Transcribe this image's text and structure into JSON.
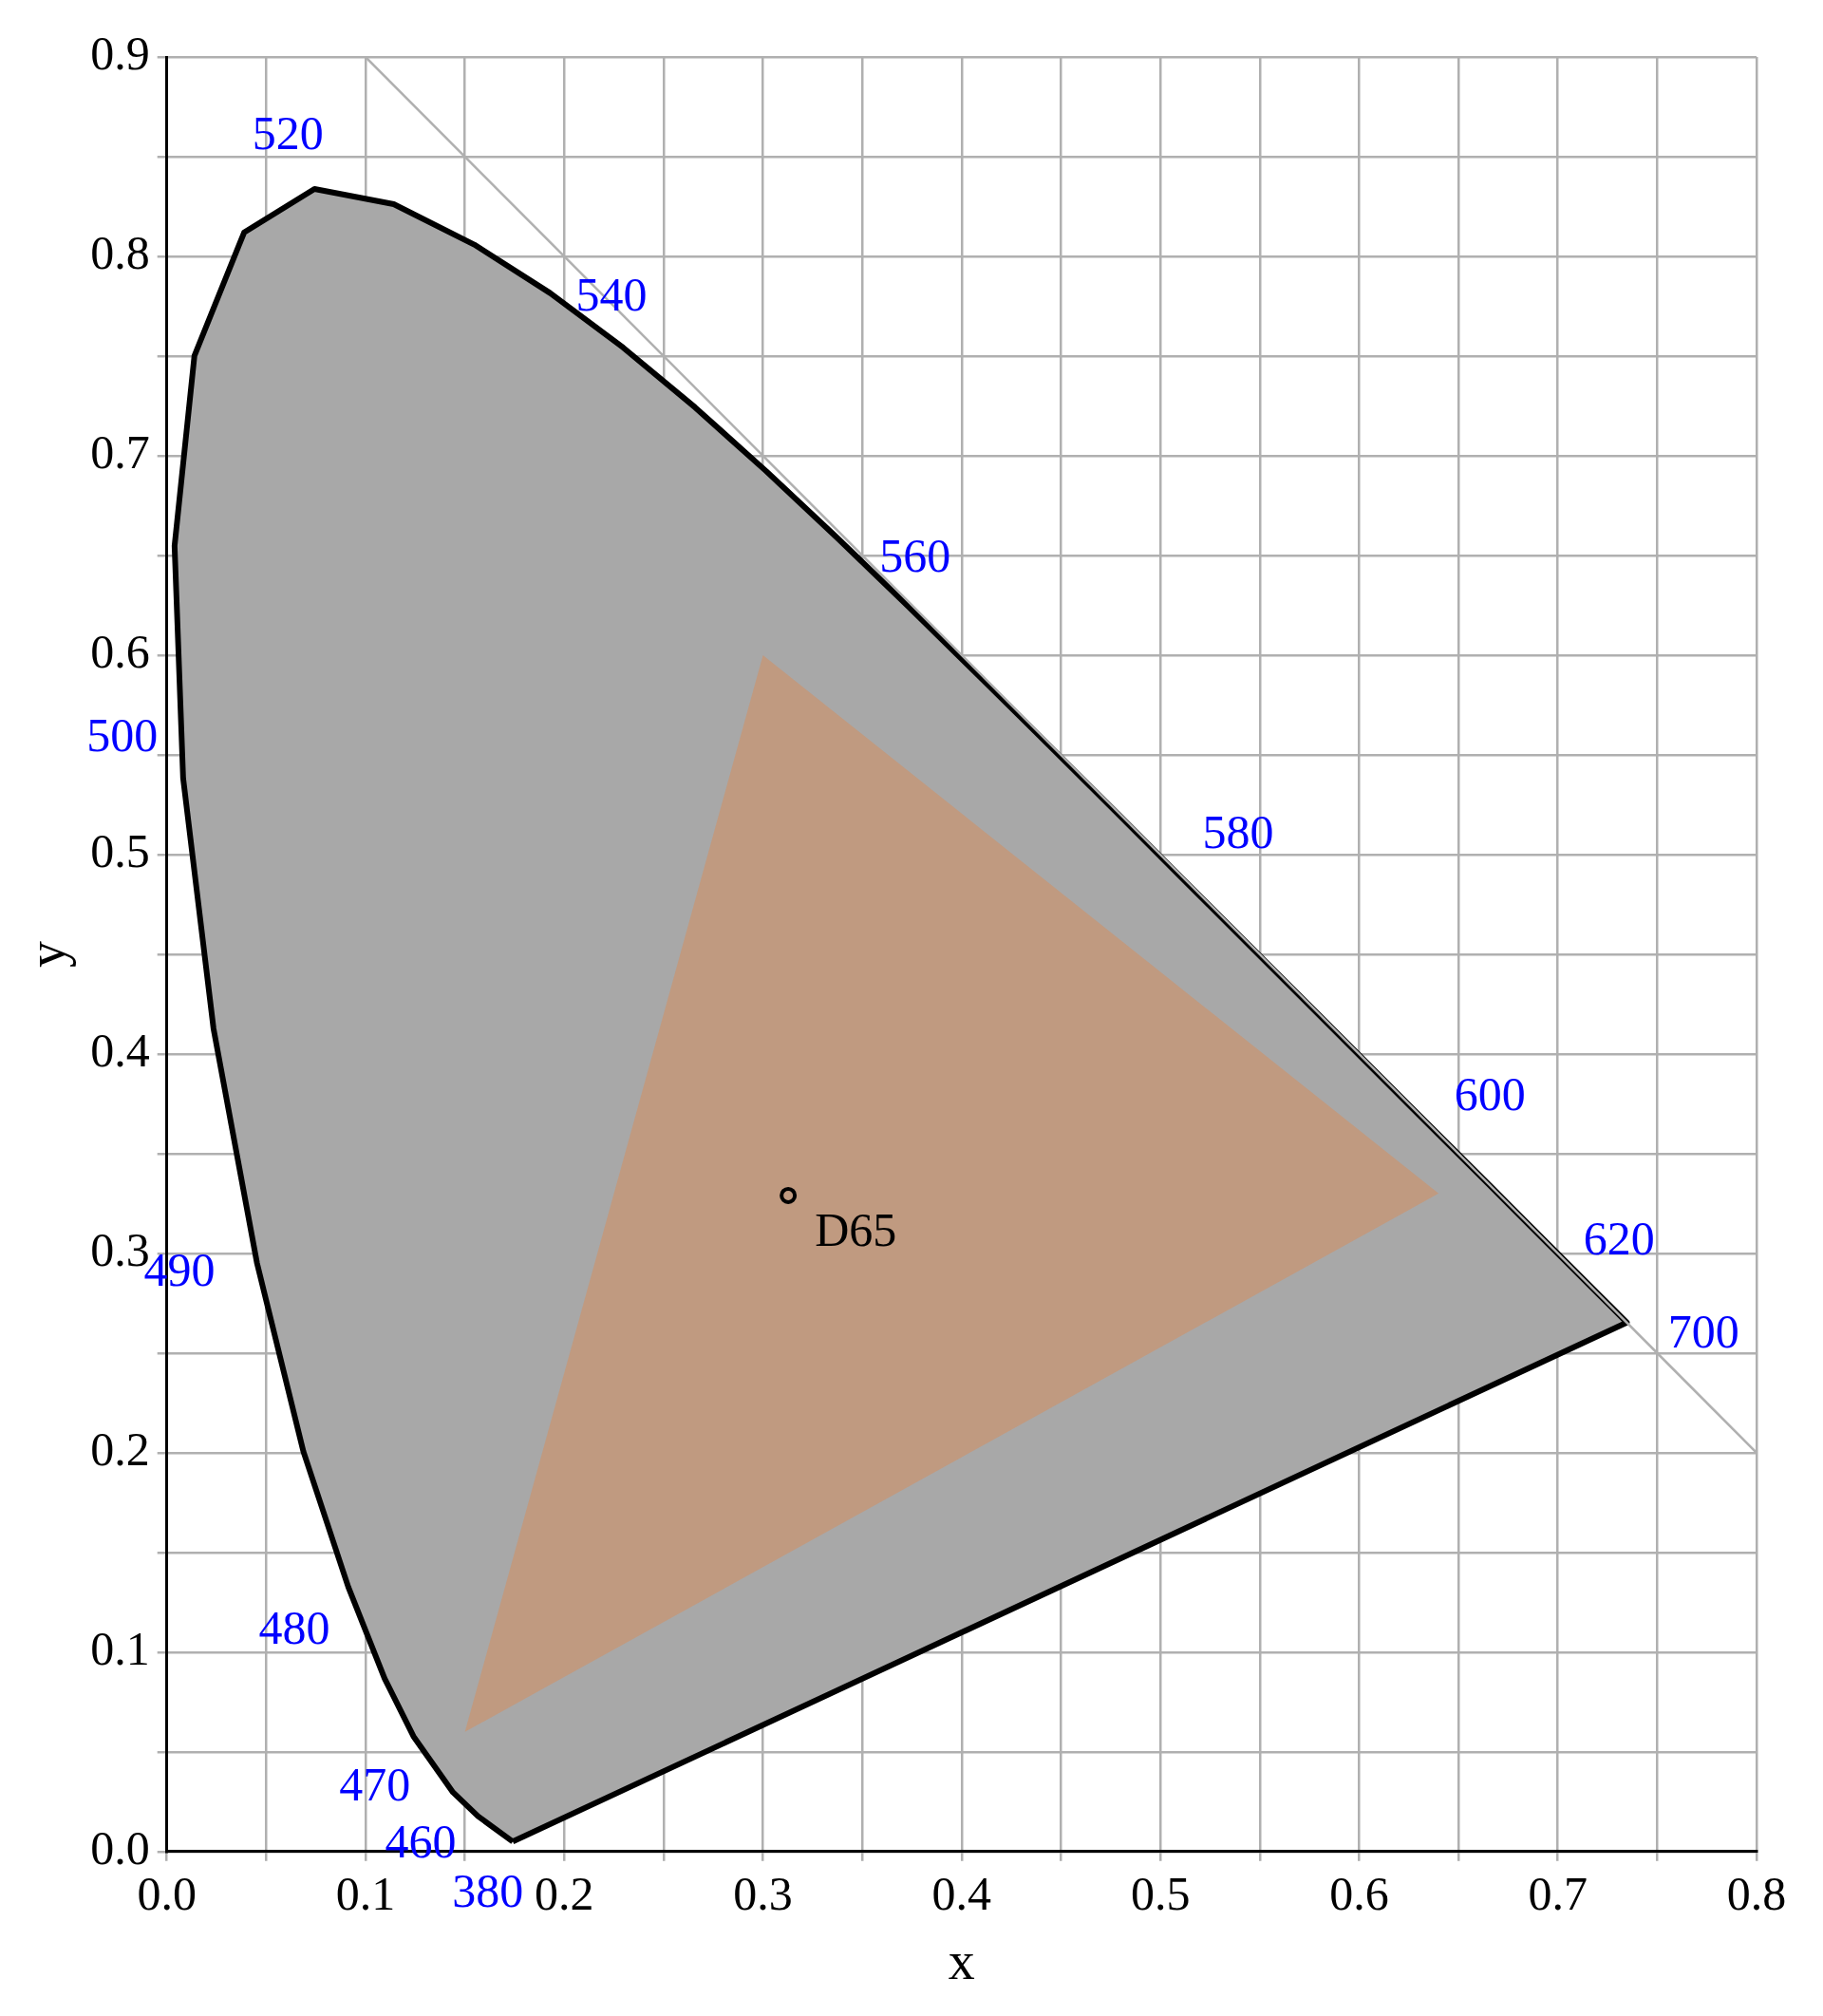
{
  "chart_data": {
    "type": "line",
    "xlabel": "x",
    "ylabel": "y",
    "xlim": [
      0,
      0.8
    ],
    "ylim": [
      0,
      0.9
    ],
    "xticks": [
      {
        "value": 0,
        "label": "0.0"
      },
      {
        "value": 0.05,
        "label": null
      },
      0.1,
      {
        "value": 0.15,
        "label": null
      },
      0.2,
      {
        "value": 0.25,
        "label": null
      },
      0.3,
      {
        "value": 0.35,
        "label": null
      },
      0.4,
      {
        "value": 0.45,
        "label": null
      },
      0.5,
      {
        "value": 0.55,
        "label": null
      },
      0.6,
      {
        "value": 0.65,
        "label": null
      },
      0.7,
      {
        "value": 0.75,
        "label": null
      },
      0.8
    ],
    "yticks": [
      {
        "value": 0,
        "label": "0.0"
      },
      {
        "value": 0.05,
        "label": null
      },
      0.1,
      {
        "value": 0.15,
        "label": null
      },
      0.2,
      {
        "value": 0.25,
        "label": null
      },
      0.3,
      {
        "value": 0.35,
        "label": null
      },
      0.4,
      {
        "value": 0.45,
        "label": null
      },
      0.5,
      {
        "value": 0.55,
        "label": null
      },
      0.6,
      {
        "value": 0.65,
        "label": null
      },
      0.7,
      {
        "value": 0.75,
        "label": null
      },
      0.8,
      {
        "value": 0.85,
        "label": null
      },
      0.9
    ],
    "grid": true,
    "legend": false,
    "series": [
      {
        "type": "area",
        "color": "#a8a8a8",
        "x": [
          0.1741,
          0.1566,
          0.144,
          0.1241,
          0.1096,
          0.0913,
          0.0687,
          0.0454,
          0.0235,
          0.0082,
          0.0039,
          0.0139,
          0.0389,
          0.0743,
          0.1142,
          0.1547,
          0.1929,
          0.2296,
          0.2658,
          0.3016,
          0.3373,
          0.3731,
          0.4087,
          0.4441,
          0.4788,
          0.5125,
          0.5448,
          0.5752,
          0.6029,
          0.627,
          0.6658,
          0.6915,
          0.7079,
          0.719,
          0.726,
          0.7347,
          0.1741
        ],
        "values": [
          0.005,
          0.0177,
          0.0297,
          0.0578,
          0.0868,
          0.1327,
          0.2007,
          0.295,
          0.4127,
          0.5384,
          0.6548,
          0.7502,
          0.812,
          0.8338,
          0.8262,
          0.8059,
          0.7816,
          0.7543,
          0.7243,
          0.6923,
          0.6589,
          0.6245,
          0.5896,
          0.5547,
          0.5202,
          0.4866,
          0.4544,
          0.4242,
          0.3965,
          0.3725,
          0.334,
          0.3083,
          0.292,
          0.2809,
          0.274,
          0.2653,
          0.005
        ]
      },
      {
        "type": "area",
        "color": "#c09a80",
        "x": [
          0.64,
          0.3,
          0.15,
          0.64
        ],
        "values": [
          0.33,
          0.6,
          0.06,
          0.33
        ]
      },
      {
        "type": "line",
        "color": "#b0b0b0",
        "x": [
          0.1,
          0.8
        ],
        "values": [
          0.9,
          0.2
        ]
      },
      {
        "type": "scatter",
        "name": "D65",
        "color": "#000000",
        "marker": "circle",
        "x": [
          0.3127
        ],
        "values": [
          0.329
        ]
      }
    ],
    "annotations": [
      {
        "text": "380",
        "x": 0.1741,
        "y": 0.005
      },
      {
        "text": "460",
        "x": 0.144,
        "y": 0.0297
      },
      {
        "text": "470",
        "x": 0.1241,
        "y": 0.0578
      },
      {
        "text": "480",
        "x": 0.0913,
        "y": 0.1327
      },
      {
        "text": "490",
        "x": 0.0454,
        "y": 0.295
      },
      {
        "text": "500",
        "x": 0.0082,
        "y": 0.5384
      },
      {
        "text": "520",
        "x": 0.0743,
        "y": 0.8338
      },
      {
        "text": "540",
        "x": 0.2296,
        "y": 0.7543
      },
      {
        "text": "560",
        "x": 0.3731,
        "y": 0.6245
      },
      {
        "text": "580",
        "x": 0.5125,
        "y": 0.4866
      },
      {
        "text": "600",
        "x": 0.627,
        "y": 0.3725
      },
      {
        "text": "620",
        "x": 0.6915,
        "y": 0.3083
      },
      {
        "text": "700",
        "x": 0.7347,
        "y": 0.2653
      }
    ]
  }
}
